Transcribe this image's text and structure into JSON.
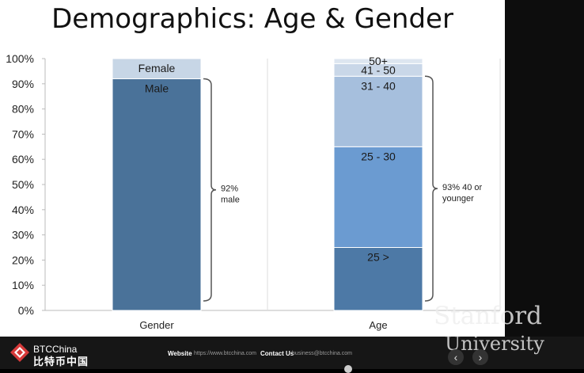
{
  "slide": {
    "title": "Demographics: Age & Gender"
  },
  "chart_data": {
    "type": "bar",
    "stacked": true,
    "categories": [
      "Gender",
      "Age"
    ],
    "ylim": [
      0,
      100
    ],
    "yticks": [
      "0%",
      "10%",
      "20%",
      "30%",
      "40%",
      "50%",
      "60%",
      "70%",
      "80%",
      "90%",
      "100%"
    ],
    "grid": false,
    "series": [
      {
        "name": "Male",
        "values": [
          92,
          null
        ],
        "color": "#4a7299"
      },
      {
        "name": "Female",
        "values": [
          8,
          null
        ],
        "color": "#c7d6e6"
      },
      {
        "name": "25 >",
        "values": [
          null,
          25
        ],
        "color": "#4d79a6"
      },
      {
        "name": "25 - 30",
        "values": [
          null,
          40
        ],
        "color": "#6b9bd1"
      },
      {
        "name": "31 - 40",
        "values": [
          null,
          28
        ],
        "color": "#a6bfdd"
      },
      {
        "name": "41 - 50",
        "values": [
          null,
          5
        ],
        "color": "#c9d7e8"
      },
      {
        "name": "50+",
        "values": [
          null,
          2
        ],
        "color": "#dde6f0"
      }
    ],
    "annotations": [
      {
        "text": "92%\nmale",
        "bar": "Gender",
        "from": 0,
        "to": 92
      },
      {
        "text": "93% 40 or\nyounger",
        "bar": "Age",
        "from": 0,
        "to": 93
      }
    ]
  },
  "footer": {
    "brand_name": "BTCChina",
    "brand_cn": "比特币中国",
    "website_label": "Website",
    "website_value": "https://www.btcchina.com",
    "contact_label": "Contact Us",
    "contact_value": "business@btcchina.com",
    "watermark_line1": "Stanford",
    "watermark_line2": "University",
    "prev_glyph": "‹",
    "next_glyph": "›"
  }
}
